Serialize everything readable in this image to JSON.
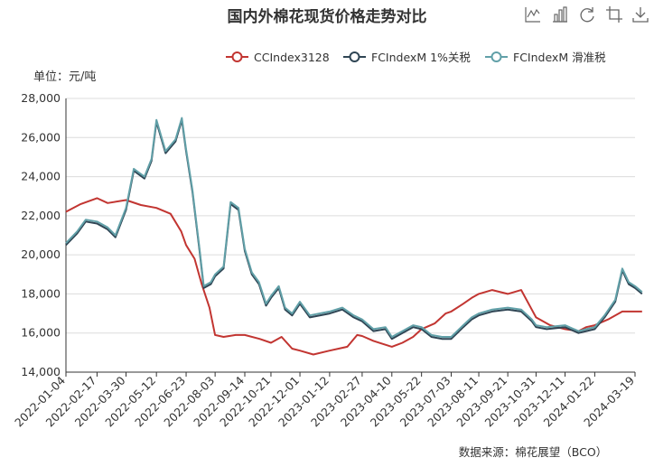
{
  "toolbar": {
    "icons": [
      "line-chart-icon",
      "bar-chart-icon",
      "restore-icon",
      "crop-icon",
      "download-icon"
    ]
  },
  "source": "数据来源：棉花展望（BCO）",
  "colors": {
    "series": [
      "#c23531",
      "#2f4554",
      "#61a0a8"
    ],
    "grid": "#dcdcdc",
    "axis": "#333333",
    "title": "#333333"
  },
  "chart_data": {
    "type": "line",
    "title": "国内外棉花现货价格走势对比",
    "unit_label": "单位：元/吨",
    "legend_position": "top-right",
    "ylim": [
      14000,
      28000
    ],
    "y_ticks": [
      "14,000",
      "16,000",
      "18,000",
      "20,000",
      "22,000",
      "24,000",
      "26,000",
      "28,000"
    ],
    "y_tick_values": [
      14000,
      16000,
      18000,
      20000,
      22000,
      24000,
      26000,
      28000
    ],
    "x_ticks": [
      "2022-01-04",
      "2022-02-17",
      "2022-03-30",
      "2022-05-12",
      "2022-06-23",
      "2022-08-03",
      "2022-09-14",
      "2022-10-21",
      "2022-12-01",
      "2023-01-12",
      "2023-02-27",
      "2023-04-10",
      "2023-05-22",
      "2023-07-03",
      "2023-08-11",
      "2023-09-21",
      "2023-10-31",
      "2023-12-11",
      "2024-01-22",
      "2024-03-19"
    ],
    "grid": true,
    "series": [
      {
        "name": "CCIndex3128",
        "points": [
          [
            "2022-01-04",
            22200
          ],
          [
            "2022-01-25",
            22600
          ],
          [
            "2022-02-17",
            22900
          ],
          [
            "2022-03-04",
            22650
          ],
          [
            "2022-03-30",
            22800
          ],
          [
            "2022-04-20",
            22550
          ],
          [
            "2022-05-12",
            22400
          ],
          [
            "2022-06-01",
            22100
          ],
          [
            "2022-06-16",
            21200
          ],
          [
            "2022-06-23",
            20500
          ],
          [
            "2022-07-05",
            19800
          ],
          [
            "2022-07-15",
            18500
          ],
          [
            "2022-07-26",
            17300
          ],
          [
            "2022-08-03",
            15900
          ],
          [
            "2022-08-15",
            15800
          ],
          [
            "2022-09-01",
            15900
          ],
          [
            "2022-09-14",
            15900
          ],
          [
            "2022-10-05",
            15700
          ],
          [
            "2022-10-21",
            15500
          ],
          [
            "2022-11-05",
            15800
          ],
          [
            "2022-11-20",
            15200
          ],
          [
            "2022-12-01",
            15100
          ],
          [
            "2022-12-20",
            14900
          ],
          [
            "2023-01-12",
            15100
          ],
          [
            "2023-02-06",
            15300
          ],
          [
            "2023-02-20",
            15900
          ],
          [
            "2023-02-27",
            15850
          ],
          [
            "2023-03-15",
            15600
          ],
          [
            "2023-04-01",
            15400
          ],
          [
            "2023-04-10",
            15300
          ],
          [
            "2023-04-25",
            15500
          ],
          [
            "2023-05-10",
            15800
          ],
          [
            "2023-05-22",
            16200
          ],
          [
            "2023-06-10",
            16500
          ],
          [
            "2023-06-25",
            17000
          ],
          [
            "2023-07-03",
            17100
          ],
          [
            "2023-07-20",
            17500
          ],
          [
            "2023-08-01",
            17800
          ],
          [
            "2023-08-11",
            18000
          ],
          [
            "2023-08-30",
            18200
          ],
          [
            "2023-09-21",
            18000
          ],
          [
            "2023-10-10",
            18200
          ],
          [
            "2023-10-25",
            17200
          ],
          [
            "2023-10-31",
            16800
          ],
          [
            "2023-11-20",
            16400
          ],
          [
            "2023-12-11",
            16200
          ],
          [
            "2023-12-30",
            16100
          ],
          [
            "2024-01-10",
            16300
          ],
          [
            "2024-01-22",
            16400
          ],
          [
            "2024-02-10",
            16700
          ],
          [
            "2024-03-01",
            17100
          ],
          [
            "2024-03-19",
            17100
          ],
          [
            "2024-03-29",
            17100
          ]
        ]
      },
      {
        "name": "FCIndexM 1%关税",
        "points": [
          [
            "2022-01-04",
            20500
          ],
          [
            "2022-01-20",
            21100
          ],
          [
            "2022-02-01",
            21700
          ],
          [
            "2022-02-17",
            21600
          ],
          [
            "2022-03-04",
            21300
          ],
          [
            "2022-03-15",
            20900
          ],
          [
            "2022-03-30",
            22300
          ],
          [
            "2022-04-10",
            24300
          ],
          [
            "2022-04-25",
            23900
          ],
          [
            "2022-05-05",
            24800
          ],
          [
            "2022-05-12",
            26800
          ],
          [
            "2022-05-25",
            25200
          ],
          [
            "2022-06-08",
            25800
          ],
          [
            "2022-06-17",
            26900
          ],
          [
            "2022-06-23",
            25300
          ],
          [
            "2022-07-02",
            23200
          ],
          [
            "2022-07-12",
            20200
          ],
          [
            "2022-07-18",
            18300
          ],
          [
            "2022-07-28",
            18500
          ],
          [
            "2022-08-03",
            18900
          ],
          [
            "2022-08-15",
            19300
          ],
          [
            "2022-08-25",
            22600
          ],
          [
            "2022-09-05",
            22300
          ],
          [
            "2022-09-14",
            20200
          ],
          [
            "2022-09-24",
            19000
          ],
          [
            "2022-10-04",
            18500
          ],
          [
            "2022-10-14",
            17400
          ],
          [
            "2022-10-21",
            17800
          ],
          [
            "2022-11-01",
            18300
          ],
          [
            "2022-11-10",
            17200
          ],
          [
            "2022-11-20",
            16900
          ],
          [
            "2022-12-01",
            17500
          ],
          [
            "2022-12-15",
            16800
          ],
          [
            "2023-01-12",
            17000
          ],
          [
            "2023-01-30",
            17200
          ],
          [
            "2023-02-15",
            16800
          ],
          [
            "2023-02-27",
            16600
          ],
          [
            "2023-03-15",
            16100
          ],
          [
            "2023-04-01",
            16200
          ],
          [
            "2023-04-10",
            15700
          ],
          [
            "2023-04-25",
            16000
          ],
          [
            "2023-05-10",
            16300
          ],
          [
            "2023-05-22",
            16200
          ],
          [
            "2023-06-05",
            15800
          ],
          [
            "2023-06-20",
            15700
          ],
          [
            "2023-07-03",
            15700
          ],
          [
            "2023-07-20",
            16300
          ],
          [
            "2023-08-01",
            16700
          ],
          [
            "2023-08-11",
            16900
          ],
          [
            "2023-08-30",
            17100
          ],
          [
            "2023-09-21",
            17200
          ],
          [
            "2023-10-10",
            17100
          ],
          [
            "2023-10-25",
            16600
          ],
          [
            "2023-10-31",
            16300
          ],
          [
            "2023-11-15",
            16200
          ],
          [
            "2023-12-11",
            16300
          ],
          [
            "2023-12-30",
            16000
          ],
          [
            "2024-01-10",
            16100
          ],
          [
            "2024-01-22",
            16200
          ],
          [
            "2024-02-05",
            16800
          ],
          [
            "2024-02-20",
            17600
          ],
          [
            "2024-03-01",
            19200
          ],
          [
            "2024-03-10",
            18500
          ],
          [
            "2024-03-19",
            18300
          ],
          [
            "2024-03-29",
            18000
          ]
        ]
      },
      {
        "name": "FCIndexM 滑准税",
        "points": [
          [
            "2022-01-04",
            20600
          ],
          [
            "2022-01-20",
            21200
          ],
          [
            "2022-02-01",
            21800
          ],
          [
            "2022-02-17",
            21700
          ],
          [
            "2022-03-04",
            21400
          ],
          [
            "2022-03-15",
            21000
          ],
          [
            "2022-03-30",
            22400
          ],
          [
            "2022-04-10",
            24400
          ],
          [
            "2022-04-25",
            24000
          ],
          [
            "2022-05-05",
            24900
          ],
          [
            "2022-05-12",
            26900
          ],
          [
            "2022-05-25",
            25300
          ],
          [
            "2022-06-08",
            25900
          ],
          [
            "2022-06-17",
            27000
          ],
          [
            "2022-06-23",
            25400
          ],
          [
            "2022-07-02",
            23300
          ],
          [
            "2022-07-12",
            20300
          ],
          [
            "2022-07-18",
            18400
          ],
          [
            "2022-07-28",
            18600
          ],
          [
            "2022-08-03",
            19000
          ],
          [
            "2022-08-15",
            19400
          ],
          [
            "2022-08-25",
            22700
          ],
          [
            "2022-09-05",
            22400
          ],
          [
            "2022-09-14",
            20300
          ],
          [
            "2022-09-24",
            19100
          ],
          [
            "2022-10-04",
            18600
          ],
          [
            "2022-10-14",
            17500
          ],
          [
            "2022-10-21",
            17900
          ],
          [
            "2022-11-01",
            18400
          ],
          [
            "2022-11-10",
            17300
          ],
          [
            "2022-11-20",
            17000
          ],
          [
            "2022-12-01",
            17600
          ],
          [
            "2022-12-15",
            16900
          ],
          [
            "2023-01-12",
            17100
          ],
          [
            "2023-01-30",
            17300
          ],
          [
            "2023-02-15",
            16900
          ],
          [
            "2023-02-27",
            16700
          ],
          [
            "2023-03-15",
            16200
          ],
          [
            "2023-04-01",
            16300
          ],
          [
            "2023-04-10",
            15800
          ],
          [
            "2023-04-25",
            16100
          ],
          [
            "2023-05-10",
            16400
          ],
          [
            "2023-05-22",
            16300
          ],
          [
            "2023-06-05",
            15900
          ],
          [
            "2023-06-20",
            15800
          ],
          [
            "2023-07-03",
            15800
          ],
          [
            "2023-07-20",
            16400
          ],
          [
            "2023-08-01",
            16800
          ],
          [
            "2023-08-11",
            17000
          ],
          [
            "2023-08-30",
            17200
          ],
          [
            "2023-09-21",
            17300
          ],
          [
            "2023-10-10",
            17200
          ],
          [
            "2023-10-25",
            16700
          ],
          [
            "2023-10-31",
            16400
          ],
          [
            "2023-11-15",
            16300
          ],
          [
            "2023-12-11",
            16400
          ],
          [
            "2023-12-30",
            16100
          ],
          [
            "2024-01-10",
            16200
          ],
          [
            "2024-01-22",
            16300
          ],
          [
            "2024-02-05",
            16900
          ],
          [
            "2024-02-20",
            17700
          ],
          [
            "2024-03-01",
            19300
          ],
          [
            "2024-03-10",
            18600
          ],
          [
            "2024-03-19",
            18400
          ],
          [
            "2024-03-29",
            18100
          ]
        ]
      }
    ]
  }
}
